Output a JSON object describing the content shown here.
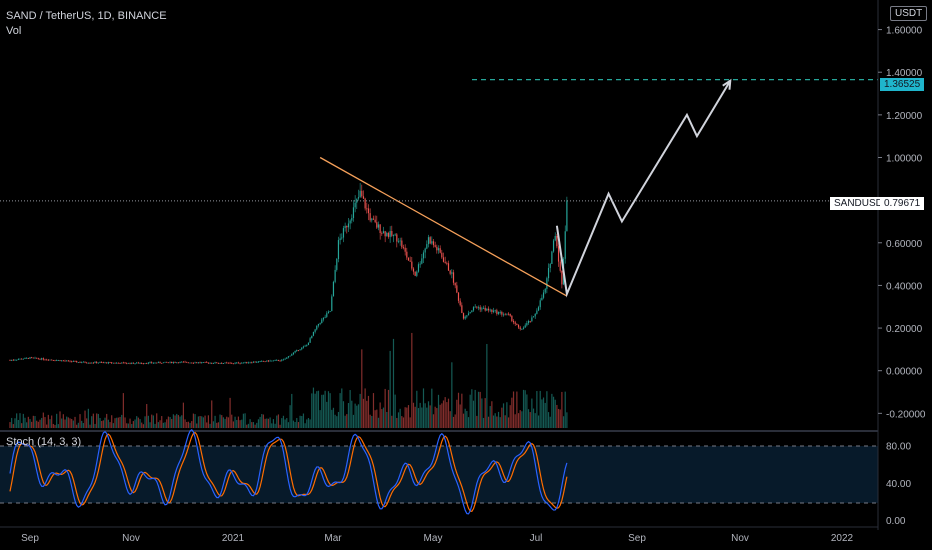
{
  "header": {
    "symbol_line": "SAND / TetherUS, 1D, BINANCE",
    "volume_label": "Vol",
    "stoch_label": "Stoch (14, 3, 3)"
  },
  "price_scale": {
    "currency_badge": "USDT",
    "ticks": [
      "1.60000",
      "1.40000",
      "1.20000",
      "1.00000",
      "0.80000",
      "0.60000",
      "0.40000",
      "0.20000",
      "0.00000",
      "-0.20000"
    ],
    "symbol_badge": "SANDUSDT",
    "last_price": "0.79671",
    "target_price": "1.36525"
  },
  "stoch_scale": {
    "ticks": [
      "80.00",
      "40.00",
      "0.00"
    ]
  },
  "time_axis": {
    "labels": [
      "Sep",
      "Nov",
      "2021",
      "Mar",
      "May",
      "Jul",
      "Sep",
      "Nov",
      "2022"
    ]
  },
  "colors": {
    "background": "#000000",
    "up": "#26a69a",
    "down": "#ef5350",
    "trendline": "#f5a05a",
    "projection": "#d1d4dc",
    "target_line": "#26a69a",
    "target_badge": "#1fb5cc",
    "stoch_k": "#2962ff",
    "stoch_d": "#ff6d00"
  },
  "chart_data": {
    "type": "candlestick",
    "ylim": [
      -0.25,
      1.72
    ],
    "price_series": [
      [
        "2020-08-20",
        0.05
      ],
      [
        "2020-09-01",
        0.06
      ],
      [
        "2020-10-01",
        0.04
      ],
      [
        "2020-11-01",
        0.035
      ],
      [
        "2020-12-01",
        0.04
      ],
      [
        "2021-01-01",
        0.035
      ],
      [
        "2021-01-31",
        0.05
      ],
      [
        "2021-02-07",
        0.09
      ],
      [
        "2021-02-14",
        0.12
      ],
      [
        "2021-02-21",
        0.22
      ],
      [
        "2021-02-28",
        0.28
      ],
      [
        "2021-03-05",
        0.6
      ],
      [
        "2021-03-12",
        0.72
      ],
      [
        "2021-03-18",
        0.83
      ],
      [
        "2021-03-25",
        0.7
      ],
      [
        "2021-04-01",
        0.65
      ],
      [
        "2021-04-10",
        0.62
      ],
      [
        "2021-04-20",
        0.45
      ],
      [
        "2021-04-28",
        0.62
      ],
      [
        "2021-05-05",
        0.55
      ],
      [
        "2021-05-12",
        0.45
      ],
      [
        "2021-05-19",
        0.25
      ],
      [
        "2021-05-26",
        0.3
      ],
      [
        "2021-06-05",
        0.28
      ],
      [
        "2021-06-15",
        0.26
      ],
      [
        "2021-06-22",
        0.19
      ],
      [
        "2021-06-30",
        0.25
      ],
      [
        "2021-07-07",
        0.38
      ],
      [
        "2021-07-13",
        0.65
      ],
      [
        "2021-07-17",
        0.4
      ],
      [
        "2021-07-20",
        0.8
      ]
    ],
    "trendline": [
      [
        "2021-02-22",
        1.0
      ],
      [
        "2021-07-20",
        0.35
      ]
    ],
    "projection": [
      [
        "2021-07-14",
        0.68
      ],
      [
        "2021-07-20",
        0.36
      ],
      [
        "2021-08-14",
        0.83
      ],
      [
        "2021-08-22",
        0.7
      ],
      [
        "2021-09-30",
        1.2
      ],
      [
        "2021-10-06",
        1.1
      ],
      [
        "2021-10-26",
        1.36
      ]
    ],
    "target_level": 1.36525,
    "last_price": 0.79671,
    "stoch_ticks": [
      80,
      40,
      0
    ]
  }
}
